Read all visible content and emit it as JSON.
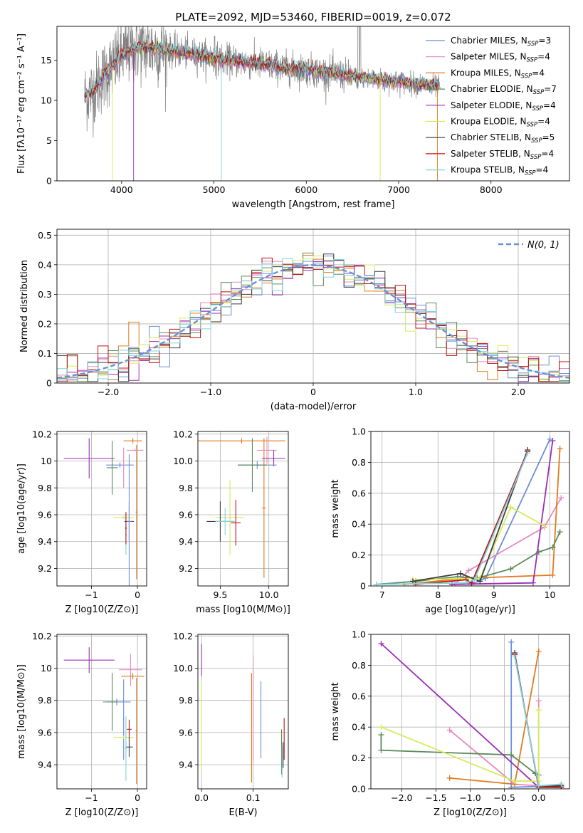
{
  "colors": {
    "chabrier_miles": "#6a8fd8",
    "salpeter_miles": "#e58bc0",
    "kroupa_miles": "#e07b1f",
    "chabrier_elodie": "#5a8a5a",
    "salpeter_elodie": "#9b2fb5",
    "kroupa_elodie": "#d5ea5a",
    "chabrier_stelib": "#3d3d3d",
    "salpeter_stelib": "#c01010",
    "kroupa_stelib": "#7fd3dd",
    "spectrum": "#808080",
    "gaussian": "#6a8fd8",
    "grid": "#b0b0b0"
  },
  "chart_data": [
    {
      "id": "spectrum",
      "type": "line",
      "title": "PLATE=2092, MJD=53460, FIBERID=0019, z=0.072",
      "xlabel": "wavelength [Angstrom, rest frame]",
      "ylabel": "Flux [fλ10⁻¹⁷ erg cm⁻² s⁻¹ A⁻¹]",
      "xlim": [
        3300,
        8850
      ],
      "ylim": [
        0,
        19.2
      ],
      "xticks": [
        4000,
        5000,
        6000,
        7000,
        8000
      ],
      "yticks": [
        0,
        5,
        10,
        15
      ],
      "grid": false,
      "legend_position": "upper right",
      "legend": [
        {
          "name": "Chabrier MILES",
          "nssp": "3"
        },
        {
          "name": "Salpeter MILES",
          "nssp": "4"
        },
        {
          "name": "Kroupa MILES",
          "nssp": "4"
        },
        {
          "name": "Chabrier ELODIE",
          "nssp": "7"
        },
        {
          "name": "Salpeter ELODIE",
          "nssp": "4"
        },
        {
          "name": "Kroupa ELODIE",
          "nssp": "4"
        },
        {
          "name": "Chabrier STELIB",
          "nssp": "5"
        },
        {
          "name": "Salpeter STELIB",
          "nssp": "4"
        },
        {
          "name": "Kroupa STELIB",
          "nssp": "4"
        }
      ],
      "continuum": {
        "x": [
          3600,
          3700,
          3800,
          3900,
          4000,
          4100,
          4200,
          4300,
          4400,
          4500,
          4700,
          4900,
          5100,
          5300,
          5500,
          5800,
          6000,
          6300,
          6600,
          7000,
          7400,
          7450
        ],
        "y": [
          10.5,
          11.2,
          13.0,
          14.2,
          15.6,
          16.3,
          16.6,
          16.5,
          16.3,
          16.2,
          15.9,
          15.5,
          15.0,
          14.8,
          14.5,
          14.0,
          13.8,
          13.3,
          12.8,
          12.3,
          11.8,
          11.5
        ]
      }
    },
    {
      "id": "residuals",
      "type": "histogram",
      "xlabel": "(data-model)/error",
      "ylabel": "Normed distribution",
      "xlim": [
        -2.5,
        2.5
      ],
      "ylim": [
        0,
        0.52
      ],
      "xticks": [
        -2,
        -1,
        0,
        1,
        2
      ],
      "yticks": [
        0.0,
        0.1,
        0.2,
        0.3,
        0.4,
        0.5
      ],
      "grid": true,
      "legend_position": "upper right",
      "gaussian_label": "N(0, 1)"
    },
    {
      "id": "age_vs_z",
      "type": "errorbar",
      "xlabel": "Z [log10(Z/Z⊙)]",
      "ylabel": "age  [log10(age/yr)]",
      "xlim": [
        -1.75,
        0.2
      ],
      "ylim": [
        9.07,
        10.22
      ],
      "xticks": [
        -1,
        0
      ],
      "yticks": [
        9.2,
        9.4,
        9.6,
        9.8,
        10.0,
        10.2
      ],
      "grid": true,
      "points": [
        {
          "s": "salpeter_elodie",
          "x": -1.05,
          "y": 10.02,
          "xe": 0.55,
          "ye": 0.15
        },
        {
          "s": "chabrier_miles",
          "x": -0.38,
          "y": 9.97,
          "xe": 0.3,
          "ye": 0.02
        },
        {
          "s": "chabrier_elodie",
          "x": -0.55,
          "y": 9.95,
          "xe": 0.12,
          "ye": 0.2
        },
        {
          "s": "kroupa_miles",
          "x": -0.1,
          "y": 10.15,
          "xe": 0.2,
          "ye": 0.02
        },
        {
          "s": "kroupa_miles",
          "x": -0.02,
          "y": 9.62,
          "xe": 0.02,
          "ye": 0.5
        },
        {
          "s": "salpeter_miles",
          "x": -0.05,
          "y": 10.08,
          "xe": 0.18,
          "ye": 0.01
        },
        {
          "s": "salpeter_miles",
          "x": -0.3,
          "y": 9.95,
          "xe": 0.01,
          "ye": 0.15
        },
        {
          "s": "kroupa_elodie",
          "x": -0.3,
          "y": 9.58,
          "xe": 0.22,
          "ye": 0.01
        },
        {
          "s": "kroupa_stelib",
          "x": -0.25,
          "y": 9.45,
          "xe": 0.02,
          "ye": 0.15
        },
        {
          "s": "salpeter_stelib",
          "x": -0.25,
          "y": 9.5,
          "xe": 0.02,
          "ye": 0.12
        },
        {
          "s": "chabrier_stelib",
          "x": -0.18,
          "y": 9.55,
          "xe": 0.1,
          "ye": 0.14
        },
        {
          "s": "chabrier_miles",
          "x": -0.18,
          "y": 9.55,
          "xe": 0.05,
          "ye": 0.5
        }
      ]
    },
    {
      "id": "age_vs_mass",
      "type": "errorbar",
      "xlabel": "mass [log10(M/M⊙)]",
      "ylabel": "",
      "xlim": [
        9.27,
        10.2
      ],
      "ylim": [
        9.07,
        10.22
      ],
      "xticks": [
        9.5,
        10.0
      ],
      "yticks": [
        9.2,
        9.4,
        9.6,
        9.8,
        10.0,
        10.2
      ],
      "grid": true,
      "points": [
        {
          "s": "kroupa_miles",
          "x": 9.72,
          "y": 10.15,
          "xe": 0.45,
          "ye": 0.02
        },
        {
          "s": "kroupa_miles",
          "x": 9.95,
          "y": 9.65,
          "xe": 0.02,
          "ye": 0.52
        },
        {
          "s": "salpeter_miles",
          "x": 9.98,
          "y": 10.08,
          "xe": 0.1,
          "ye": 0.1
        },
        {
          "s": "salpeter_elodie",
          "x": 10.05,
          "y": 10.02,
          "xe": 0.12,
          "ye": 0.06
        },
        {
          "s": "chabrier_miles",
          "x": 9.88,
          "y": 9.97,
          "xe": 0.2,
          "ye": 0.03
        },
        {
          "s": "chabrier_elodie",
          "x": 9.83,
          "y": 9.97,
          "xe": 0.15,
          "ye": 0.2
        },
        {
          "s": "kroupa_elodie",
          "x": 9.6,
          "y": 9.58,
          "xe": 0.15,
          "ye": 0.28
        },
        {
          "s": "chabrier_stelib",
          "x": 9.5,
          "y": 9.55,
          "xe": 0.14,
          "ye": 0.15
        },
        {
          "s": "kroupa_stelib",
          "x": 9.55,
          "y": 9.55,
          "xe": 0.1,
          "ye": 0.1
        },
        {
          "s": "salpeter_stelib",
          "x": 9.66,
          "y": 9.54,
          "xe": 0.05,
          "ye": 0.17
        }
      ]
    },
    {
      "id": "weight_vs_age",
      "type": "line",
      "xlabel": "age  [log10(age/yr)]",
      "ylabel": "mass weight",
      "xlim": [
        6.8,
        10.35
      ],
      "ylim": [
        0,
        1.0
      ],
      "xticks": [
        7,
        8,
        9,
        10
      ],
      "yticks": [
        0.0,
        0.2,
        0.4,
        0.6,
        0.8,
        1.0
      ],
      "grid": true,
      "series": [
        {
          "s": "chabrier_miles",
          "x": [
            8.6,
            8.85,
            10.0
          ],
          "y": [
            0.01,
            0.05,
            0.95
          ]
        },
        {
          "s": "salpeter_miles",
          "x": [
            8.3,
            8.55,
            9.9,
            10.2
          ],
          "y": [
            0.01,
            0.1,
            0.38,
            0.57
          ]
        },
        {
          "s": "kroupa_miles",
          "x": [
            7.4,
            8.5,
            10.05,
            10.18
          ],
          "y": [
            0.01,
            0.05,
            0.07,
            0.89
          ]
        },
        {
          "s": "chabrier_elodie",
          "x": [
            6.9,
            7.6,
            8.35,
            8.7,
            9.3,
            9.8,
            10.05,
            10.18
          ],
          "y": [
            0.01,
            0.03,
            0.06,
            0.05,
            0.11,
            0.22,
            0.25,
            0.35
          ]
        },
        {
          "s": "salpeter_elodie",
          "x": [
            8.25,
            9.7,
            10.05
          ],
          "y": [
            0.01,
            0.02,
            0.94
          ]
        },
        {
          "s": "kroupa_elodie",
          "x": [
            7.55,
            8.75,
            9.3,
            9.9
          ],
          "y": [
            0.04,
            0.05,
            0.51,
            0.39
          ]
        },
        {
          "s": "chabrier_stelib",
          "x": [
            7.55,
            8.4,
            8.75,
            9.6
          ],
          "y": [
            0.03,
            0.08,
            0.03,
            0.88
          ]
        },
        {
          "s": "salpeter_stelib",
          "x": [
            7.6,
            8.5,
            8.6,
            9.6
          ],
          "y": [
            0.01,
            0.04,
            0.02,
            0.87
          ]
        },
        {
          "s": "kroupa_stelib",
          "x": [
            6.9,
            8.5,
            8.65,
            9.6
          ],
          "y": [
            0.01,
            0.02,
            0.04,
            0.86
          ]
        }
      ]
    },
    {
      "id": "mass_vs_z",
      "type": "errorbar",
      "xlabel": "Z [log10(Z/Z⊙)]",
      "ylabel": "mass [log10(M/M⊙)]",
      "xlim": [
        -1.75,
        0.2
      ],
      "ylim": [
        9.25,
        10.21
      ],
      "xticks": [
        -1,
        0
      ],
      "yticks": [
        9.4,
        9.6,
        9.8,
        10.0,
        10.2
      ],
      "grid": true,
      "points": [
        {
          "s": "salpeter_elodie",
          "x": -1.05,
          "y": 10.05,
          "xe": 0.55,
          "ye": 0.08
        },
        {
          "s": "salpeter_miles",
          "x": -0.15,
          "y": 9.99,
          "xe": 0.25,
          "ye": 0.1
        },
        {
          "s": "kroupa_miles",
          "x": -0.1,
          "y": 9.95,
          "xe": 0.25,
          "ye": 0.02
        },
        {
          "s": "kroupa_miles",
          "x": -0.02,
          "y": 9.61,
          "xe": 0.02,
          "ye": 0.33
        },
        {
          "s": "chabrier_miles",
          "x": -0.45,
          "y": 9.79,
          "xe": 0.3,
          "ye": 0.02
        },
        {
          "s": "chabrier_elodie",
          "x": -0.55,
          "y": 9.79,
          "xe": 0.12,
          "ye": 0.18
        },
        {
          "s": "chabrier_miles",
          "x": -0.3,
          "y": 9.68,
          "xe": 0.01,
          "ye": 0.25
        },
        {
          "s": "kroupa_elodie",
          "x": -0.3,
          "y": 9.57,
          "xe": 0.22,
          "ye": 0.01
        },
        {
          "s": "salpeter_stelib",
          "x": -0.18,
          "y": 9.62,
          "xe": 0.05,
          "ye": 0.06
        },
        {
          "s": "chabrier_stelib",
          "x": -0.18,
          "y": 9.51,
          "xe": 0.08,
          "ye": 0.06
        },
        {
          "s": "kroupa_stelib",
          "x": -0.25,
          "y": 9.5,
          "xe": 0.02,
          "ye": 0.2
        }
      ]
    },
    {
      "id": "mass_vs_ebv",
      "type": "errorbar",
      "xlabel": "E(B-V)",
      "ylabel": "",
      "xlim": [
        -0.007,
        0.168
      ],
      "ylim": [
        9.25,
        10.21
      ],
      "xticks": [
        0.0,
        0.1
      ],
      "yticks": [
        9.4,
        9.6,
        9.8,
        10.0,
        10.2
      ],
      "grid": true,
      "points": [
        {
          "s": "salpeter_elodie",
          "x": 0.0,
          "y": 10.05,
          "xe": 0,
          "ye": 0.1
        },
        {
          "s": "kroupa_elodie",
          "x": 0.0,
          "y": 9.65,
          "xe": 0,
          "ye": 0.28
        },
        {
          "s": "salpeter_miles",
          "x": 0.1,
          "y": 9.75,
          "xe": 0,
          "ye": 0.33
        },
        {
          "s": "kroupa_miles",
          "x": 0.097,
          "y": 9.63,
          "xe": 0,
          "ye": 0.34
        },
        {
          "s": "chabrier_miles",
          "x": 0.115,
          "y": 9.68,
          "xe": 0,
          "ye": 0.24
        },
        {
          "s": "chabrier_elodie",
          "x": 0.155,
          "y": 9.48,
          "xe": 0,
          "ye": 0.14
        },
        {
          "s": "salpeter_stelib",
          "x": 0.16,
          "y": 9.56,
          "xe": 0,
          "ye": 0.13
        },
        {
          "s": "kroupa_stelib",
          "x": 0.156,
          "y": 9.42,
          "xe": 0,
          "ye": 0.1
        },
        {
          "s": "chabrier_stelib",
          "x": 0.158,
          "y": 9.46,
          "xe": 0,
          "ye": 0.08
        }
      ]
    },
    {
      "id": "weight_vs_z",
      "type": "line",
      "xlabel": "Z [log10(Z/Z⊙)]",
      "ylabel": "mass weight",
      "xlim": [
        -2.45,
        0.45
      ],
      "ylim": [
        0,
        1.0
      ],
      "xticks": [
        -2.0,
        -1.5,
        -1.0,
        -0.5,
        0.0
      ],
      "yticks": [
        0.0,
        0.2,
        0.4,
        0.6,
        0.8,
        1.0
      ],
      "grid": true,
      "series": [
        {
          "s": "chabrier_miles",
          "x": [
            -0.4,
            -0.4,
            0.33
          ],
          "y": [
            0.95,
            0.01,
            0.02
          ]
        },
        {
          "s": "salpeter_miles",
          "x": [
            -1.3,
            -0.35,
            0.0,
            0.0
          ],
          "y": [
            0.38,
            0.03,
            0.02,
            0.57
          ]
        },
        {
          "s": "kroupa_miles",
          "x": [
            -1.3,
            -0.35,
            0.0
          ],
          "y": [
            0.07,
            0.03,
            0.89
          ]
        },
        {
          "s": "chabrier_elodie",
          "x": [
            -2.3,
            -2.3,
            -0.4,
            -0.05,
            0.0,
            0.0,
            0.33
          ],
          "y": [
            0.35,
            0.25,
            0.22,
            0.1,
            0.09,
            0.01,
            0.03
          ]
        },
        {
          "s": "salpeter_elodie",
          "x": [
            -2.3,
            0.0,
            0.33
          ],
          "y": [
            0.94,
            0.01,
            0.02
          ]
        },
        {
          "s": "kroupa_elodie",
          "x": [
            -2.3,
            -0.35,
            0.0,
            0.0
          ],
          "y": [
            0.4,
            0.05,
            0.05,
            0.51
          ]
        },
        {
          "s": "chabrier_stelib",
          "x": [
            -0.35,
            0.0,
            0.33
          ],
          "y": [
            0.88,
            0.01,
            0.02
          ]
        },
        {
          "s": "salpeter_stelib",
          "x": [
            -0.35,
            0.0,
            0.33
          ],
          "y": [
            0.87,
            0.01,
            0.01
          ]
        },
        {
          "s": "kroupa_stelib",
          "x": [
            -0.35,
            0.0,
            0.33
          ],
          "y": [
            0.86,
            0.02,
            0.03
          ]
        }
      ]
    }
  ]
}
